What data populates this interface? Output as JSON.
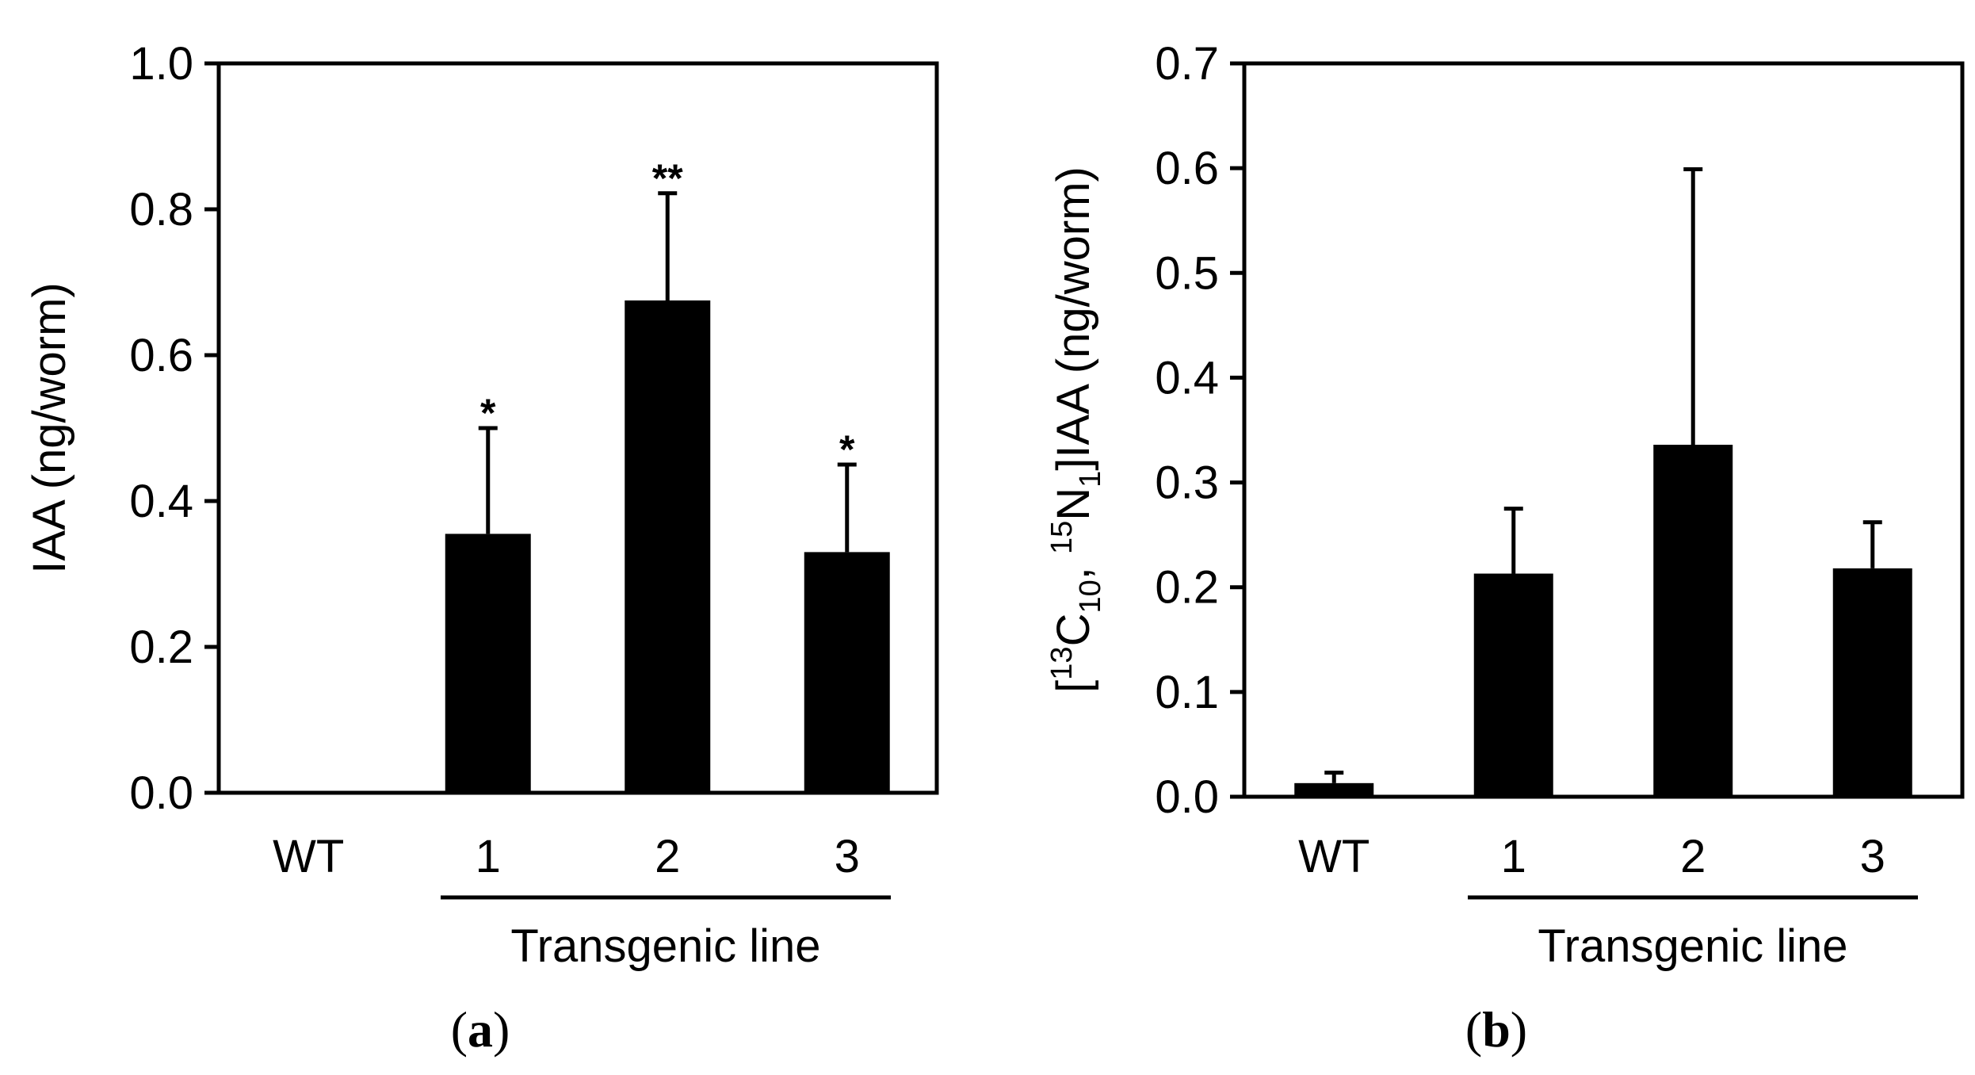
{
  "chart_data": [
    {
      "type": "bar",
      "panel_label": "a",
      "ylabel": "IAA (ng/worm)",
      "ylim": [
        0,
        1.0
      ],
      "ytick_labels": [
        "0.0",
        "0.2",
        "0.4",
        "0.6",
        "0.8",
        "1.0"
      ],
      "categories": [
        "WT",
        "1",
        "2",
        "3"
      ],
      "values": [
        0.0,
        0.355,
        0.675,
        0.33
      ],
      "errors": [
        0.0,
        0.145,
        0.147,
        0.12
      ],
      "significance": [
        "",
        "*",
        "**",
        "*"
      ],
      "group_label": "Transgenic line",
      "color": "#000000"
    },
    {
      "type": "bar",
      "panel_label": "b",
      "ylabel": {
        "prefix": "[",
        "sup1": "13",
        "c": "C",
        "sub1": "10",
        "sep": ", ",
        "sup2": "15",
        "n": "N",
        "sub2": "1",
        "suffix": "]IAA (ng/worm)"
      },
      "ylim": [
        0,
        0.7
      ],
      "ytick_labels": [
        "0.0",
        "0.1",
        "0.2",
        "0.3",
        "0.4",
        "0.5",
        "0.6",
        "0.7"
      ],
      "categories": [
        "WT",
        "1",
        "2",
        "3"
      ],
      "values": [
        0.013,
        0.213,
        0.336,
        0.218
      ],
      "errors": [
        0.01,
        0.062,
        0.263,
        0.044
      ],
      "significance": [
        "",
        "",
        "",
        ""
      ],
      "group_label": "Transgenic line",
      "color": "#000000"
    }
  ]
}
